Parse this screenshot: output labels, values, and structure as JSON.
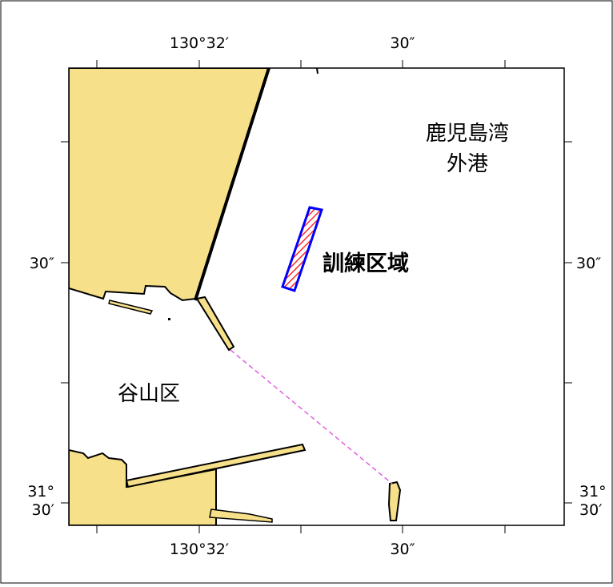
{
  "map": {
    "type": "nautical-chart-excerpt",
    "colors": {
      "land": "#f7e08a",
      "land_edge": "#000000",
      "water": "#ffffff",
      "training_area_outline": "#0000ff",
      "training_area_hatch": "#ff2a2a",
      "course_line": "#e060e0",
      "frame": "#000000"
    },
    "labels": {
      "bay_line1": "鹿児島湾",
      "bay_line2": "外港",
      "training_area": "訓練区域",
      "district": "谷山区"
    },
    "ticks": {
      "top": [
        "130°32′",
        "30″"
      ],
      "bottom": [
        "130°32′",
        "30″"
      ],
      "left": [
        "30″",
        "31°",
        "30′"
      ],
      "right": [
        "30″",
        "31°",
        "30′"
      ]
    }
  }
}
